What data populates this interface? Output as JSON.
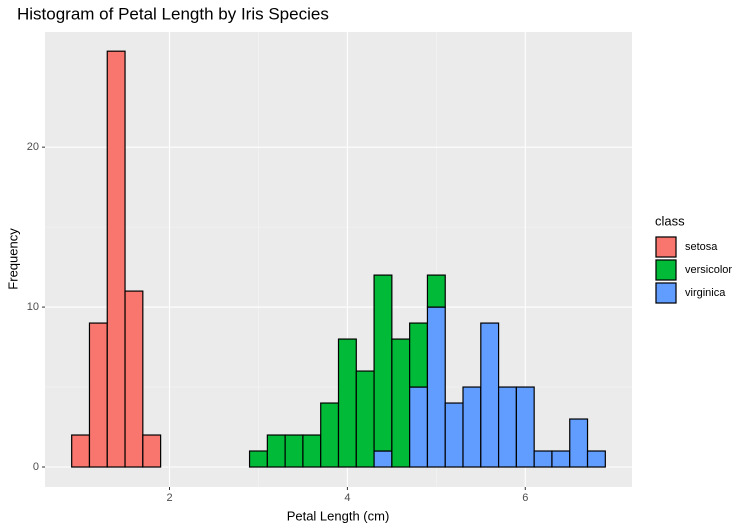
{
  "chart_data": {
    "type": "histogram",
    "title": "Histogram of Petal Length by Iris Species",
    "x_label": "Petal Length (cm)",
    "y_label": "Frequency",
    "legend_title": "class",
    "legend_position": "right",
    "stacked": true,
    "grid": true,
    "bins": [
      0.9,
      1.1,
      1.3,
      1.5,
      1.7,
      1.9,
      2.1,
      2.3,
      2.5,
      2.7,
      2.9,
      3.1,
      3.3,
      3.5,
      3.7,
      3.9,
      4.1,
      4.3,
      4.5,
      4.7,
      4.9,
      5.1,
      5.3,
      5.5,
      5.7,
      5.9,
      6.1,
      6.3,
      6.5,
      6.7,
      6.9
    ],
    "series": [
      {
        "name": "setosa",
        "color": "#F8766D",
        "values": [
          2,
          9,
          26,
          11,
          2,
          0,
          0,
          0,
          0,
          0,
          0,
          0,
          0,
          0,
          0,
          0,
          0,
          0,
          0,
          0,
          0,
          0,
          0,
          0,
          0,
          0,
          0,
          0,
          0,
          0
        ]
      },
      {
        "name": "versicolor",
        "color": "#00BA38",
        "values": [
          0,
          0,
          0,
          0,
          0,
          0,
          0,
          0,
          0,
          0,
          1,
          2,
          2,
          2,
          4,
          8,
          6,
          11,
          8,
          4,
          2,
          0,
          0,
          0,
          0,
          0,
          0,
          0,
          0,
          0
        ]
      },
      {
        "name": "virginica",
        "color": "#619CFF",
        "values": [
          0,
          0,
          0,
          0,
          0,
          0,
          0,
          0,
          0,
          0,
          0,
          0,
          0,
          0,
          0,
          0,
          0,
          1,
          0,
          5,
          10,
          4,
          5,
          9,
          5,
          5,
          1,
          1,
          3,
          1
        ]
      }
    ],
    "xlim": [
      0.6,
      7.2
    ],
    "ylim": [
      -1.25,
      27.2
    ],
    "xticks": [
      2,
      4,
      6
    ],
    "yticks": [
      0,
      10,
      20
    ]
  }
}
